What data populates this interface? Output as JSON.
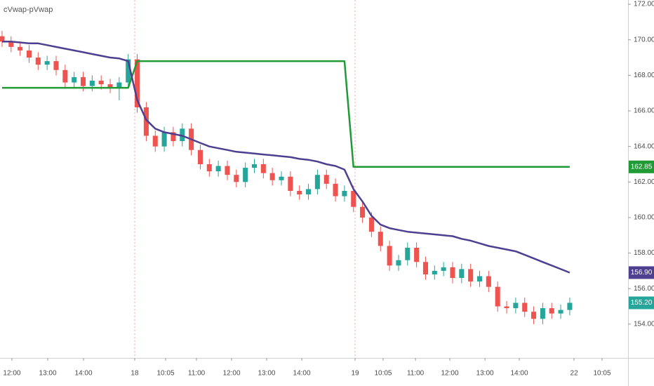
{
  "chart_data": {
    "type": "candlestick",
    "title": "cVwap-pVwap",
    "xlim": [
      -0.23,
      69.47
    ],
    "ylim": [
      152.1,
      172.24
    ],
    "xticks": [
      {
        "value": 1.09,
        "label": "12:00"
      },
      {
        "value": 5.07,
        "label": "13:00"
      },
      {
        "value": 9.04,
        "label": "14:00"
      },
      {
        "value": 14.72,
        "label": "18"
      },
      {
        "value": 18.15,
        "label": "10:05"
      },
      {
        "value": 21.58,
        "label": "11:00"
      },
      {
        "value": 25.47,
        "label": "12:00"
      },
      {
        "value": 29.36,
        "label": "13:00"
      },
      {
        "value": 33.26,
        "label": "14:00"
      },
      {
        "value": 39.18,
        "label": "19"
      },
      {
        "value": 42.29,
        "label": "10:05"
      },
      {
        "value": 45.88,
        "label": "11:00"
      },
      {
        "value": 49.69,
        "label": "12:00"
      },
      {
        "value": 53.59,
        "label": "13:00"
      },
      {
        "value": 57.4,
        "label": "14:00"
      },
      {
        "value": 63.48,
        "label": "22"
      },
      {
        "value": 66.59,
        "label": "10:05"
      }
    ],
    "yticks": [
      {
        "value": 154,
        "label": "154.00"
      },
      {
        "value": 156,
        "label": "156.00"
      },
      {
        "value": 158,
        "label": "158.00"
      },
      {
        "value": 160,
        "label": "160.00"
      },
      {
        "value": 162,
        "label": "162.00"
      },
      {
        "value": 164,
        "label": "164.00"
      },
      {
        "value": 166,
        "label": "166.00"
      },
      {
        "value": 168,
        "label": "168.00"
      },
      {
        "value": 170,
        "label": "170.00"
      },
      {
        "value": 172,
        "label": "172.00"
      }
    ],
    "session_breaks": [
      14.72,
      39.18
    ],
    "candles": {
      "up_color": "#26a69a",
      "down_color": "#ef5350",
      "value_label": "155.20",
      "open": [
        170.2,
        169.9,
        169.6,
        169.4,
        169.0,
        168.6,
        168.8,
        168.3,
        167.6,
        167.9,
        167.4,
        167.7,
        167.5,
        167.3,
        167.6,
        168.9,
        166.2,
        164.6,
        164.0,
        164.8,
        164.3,
        165.0,
        163.8,
        163.0,
        162.6,
        162.9,
        162.4,
        162.0,
        162.8,
        163.0,
        162.5,
        162.1,
        162.3,
        161.5,
        161.3,
        161.6,
        162.4,
        161.9,
        161.2,
        161.5,
        160.6,
        160.0,
        159.2,
        158.4,
        157.3,
        157.6,
        158.3,
        157.5,
        156.8,
        157.0,
        157.2,
        156.6,
        157.1,
        156.4,
        156.7,
        156.1,
        155.0,
        154.9,
        155.2,
        154.7,
        154.3,
        154.9,
        154.6,
        154.8
      ],
      "high": [
        170.5,
        170.2,
        169.9,
        169.7,
        169.3,
        169.1,
        169.1,
        168.6,
        168.2,
        168.2,
        168.0,
        168.0,
        167.8,
        167.9,
        169.2,
        169.2,
        166.5,
        164.9,
        165.1,
        165.1,
        165.3,
        165.3,
        164.1,
        163.3,
        163.2,
        163.2,
        162.7,
        163.1,
        163.3,
        163.3,
        162.8,
        162.6,
        162.6,
        161.8,
        161.9,
        162.7,
        162.7,
        162.2,
        161.8,
        161.8,
        160.9,
        160.3,
        159.5,
        158.7,
        157.9,
        158.6,
        158.6,
        157.8,
        157.3,
        157.5,
        157.5,
        157.4,
        157.4,
        157.0,
        157.0,
        156.4,
        155.3,
        155.5,
        155.5,
        155.0,
        155.2,
        155.2,
        155.1,
        155.5
      ],
      "low": [
        169.6,
        169.3,
        169.1,
        168.7,
        168.3,
        168.3,
        168.0,
        167.3,
        167.3,
        167.1,
        167.1,
        167.2,
        167.0,
        166.6,
        167.3,
        165.9,
        164.3,
        163.7,
        163.7,
        164.0,
        164.0,
        163.5,
        162.7,
        162.3,
        162.3,
        162.1,
        161.7,
        161.7,
        162.5,
        162.2,
        161.8,
        161.8,
        161.2,
        161.0,
        161.0,
        161.3,
        161.6,
        160.9,
        160.9,
        160.3,
        159.7,
        158.9,
        158.1,
        157.0,
        157.0,
        157.3,
        157.2,
        156.5,
        156.5,
        156.7,
        156.3,
        156.3,
        156.1,
        156.1,
        155.8,
        154.7,
        154.6,
        154.6,
        154.4,
        154.0,
        154.0,
        154.3,
        154.3,
        154.5
      ],
      "close": [
        169.9,
        169.6,
        169.4,
        169.0,
        168.6,
        168.8,
        168.3,
        167.6,
        167.9,
        167.4,
        167.7,
        167.5,
        167.3,
        167.6,
        168.9,
        166.2,
        164.6,
        164.0,
        164.8,
        164.3,
        165.0,
        163.8,
        163.0,
        162.6,
        162.9,
        162.4,
        162.0,
        162.8,
        163.0,
        162.5,
        162.1,
        162.3,
        161.5,
        161.3,
        161.6,
        162.4,
        161.9,
        161.2,
        161.5,
        160.6,
        160.0,
        159.2,
        158.4,
        157.3,
        157.6,
        158.3,
        157.5,
        156.8,
        157.0,
        157.2,
        156.6,
        157.1,
        156.4,
        156.7,
        156.1,
        155.0,
        154.9,
        155.2,
        154.7,
        154.3,
        154.9,
        154.6,
        154.8,
        155.2
      ]
    },
    "series": [
      {
        "color": "#1f9a35",
        "value_label": "162.85",
        "values": [
          167.3,
          167.3,
          167.3,
          167.3,
          167.3,
          167.3,
          167.3,
          167.3,
          167.3,
          167.3,
          167.3,
          167.3,
          167.3,
          167.3,
          167.3,
          168.8,
          168.8,
          168.8,
          168.8,
          168.8,
          168.8,
          168.8,
          168.8,
          168.8,
          168.8,
          168.8,
          168.8,
          168.8,
          168.8,
          168.8,
          168.8,
          168.8,
          168.8,
          168.8,
          168.8,
          168.8,
          168.8,
          168.8,
          168.8,
          162.85,
          162.85,
          162.85,
          162.85,
          162.85,
          162.85,
          162.85,
          162.85,
          162.85,
          162.85,
          162.85,
          162.85,
          162.85,
          162.85,
          162.85,
          162.85,
          162.85,
          162.85,
          162.85,
          162.85,
          162.85,
          162.85,
          162.85,
          162.85,
          162.85
        ]
      },
      {
        "color": "#4e3f91",
        "value_label": "156.90",
        "values": [
          169.9,
          169.9,
          169.85,
          169.8,
          169.8,
          169.7,
          169.6,
          169.5,
          169.4,
          169.3,
          169.2,
          169.1,
          169.0,
          168.95,
          168.8,
          166.6,
          165.5,
          165.0,
          164.8,
          164.7,
          164.6,
          164.4,
          164.2,
          164.0,
          163.9,
          163.8,
          163.7,
          163.65,
          163.6,
          163.55,
          163.5,
          163.45,
          163.4,
          163.3,
          163.25,
          163.15,
          163.0,
          162.9,
          162.7,
          161.6,
          160.9,
          160.1,
          159.6,
          159.4,
          159.3,
          159.2,
          159.15,
          159.1,
          159.05,
          159.0,
          158.95,
          158.8,
          158.7,
          158.55,
          158.4,
          158.3,
          158.2,
          158.1,
          157.9,
          157.7,
          157.5,
          157.3,
          157.1,
          156.9
        ]
      }
    ]
  }
}
